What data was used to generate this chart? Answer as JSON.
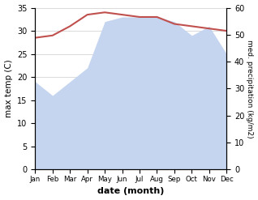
{
  "months": [
    "Jan",
    "Feb",
    "Mar",
    "Apr",
    "May",
    "Jun",
    "Jul",
    "Aug",
    "Sep",
    "Oct",
    "Nov",
    "Dec"
  ],
  "temp": [
    28.5,
    29.0,
    31.0,
    33.5,
    34.0,
    33.5,
    33.0,
    33.0,
    31.5,
    31.0,
    30.5,
    30.0
  ],
  "precip": [
    19,
    16,
    19,
    22,
    32,
    33,
    33,
    33,
    32,
    29,
    31,
    25
  ],
  "temp_color": "#c0504d",
  "precip_fill_color": "#c5d5f0",
  "ylabel_left": "max temp (C)",
  "ylabel_right": "med. precipitation (kg/m2)",
  "xlabel": "date (month)",
  "ylim_left": [
    0,
    35
  ],
  "ylim_right": [
    0,
    60
  ],
  "left_yticks": [
    0,
    5,
    10,
    15,
    20,
    25,
    30,
    35
  ],
  "right_yticks": [
    0,
    10,
    20,
    30,
    40,
    50,
    60
  ],
  "bg_color": "#ffffff"
}
